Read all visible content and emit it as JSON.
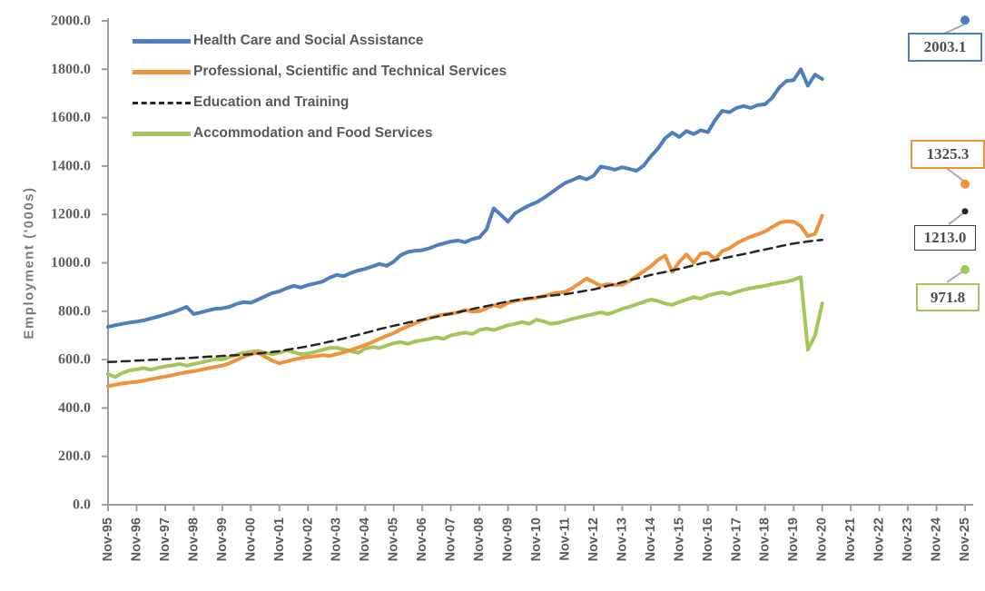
{
  "chart": {
    "y_axis": {
      "title": "Employment ('000s)",
      "min": 0,
      "max": 2000,
      "step": 200,
      "tick_labels": [
        "0.0",
        "200.0",
        "400.0",
        "600.0",
        "800.0",
        "1000.0",
        "1200.0",
        "1400.0",
        "1600.0",
        "1800.0",
        "2000.0"
      ]
    },
    "x_axis": {
      "tick_labels": [
        "Nov-95",
        "Nov-96",
        "Nov-97",
        "Nov-98",
        "Nov-99",
        "Nov-00",
        "Nov-01",
        "Nov-02",
        "Nov-03",
        "Nov-04",
        "Nov-05",
        "Nov-06",
        "Nov-07",
        "Nov-08",
        "Nov-09",
        "Nov-10",
        "Nov-11",
        "Nov-12",
        "Nov-13",
        "Nov-14",
        "Nov-15",
        "Nov-16",
        "Nov-17",
        "Nov-18",
        "Nov-19",
        "Nov-20",
        "Nov-21",
        "Nov-22",
        "Nov-23",
        "Nov-24",
        "Nov-25"
      ]
    }
  },
  "legend": {
    "items": [
      {
        "label": "Health Care and Social Assistance",
        "color": "#4D7EBD",
        "style": "solid"
      },
      {
        "label": "Professional, Scientific and Technical Services",
        "color": "#F0913C",
        "style": "solid"
      },
      {
        "label": "Education and Training",
        "color": "#262626",
        "style": "dashed"
      },
      {
        "label": "Accommodation and Food Services",
        "color": "#A3C55A",
        "style": "solid"
      }
    ]
  },
  "end_labels": [
    {
      "series": "Health Care and Social Assistance",
      "value": "2003.1"
    },
    {
      "series": "Professional, Scientific and Technical Services",
      "value": "1325.3"
    },
    {
      "series": "Education and Training",
      "value": "1213.0"
    },
    {
      "series": "Accommodation and Food Services",
      "value": "971.8"
    }
  ],
  "chart_data": {
    "type": "line",
    "title": "",
    "xlabel": "",
    "ylabel": "Employment ('000s)",
    "ylim": [
      0,
      2000
    ],
    "grid": false,
    "legend_position": "top-left-inside",
    "x_tick_labels": [
      "Nov-95",
      "Nov-96",
      "Nov-97",
      "Nov-98",
      "Nov-99",
      "Nov-00",
      "Nov-01",
      "Nov-02",
      "Nov-03",
      "Nov-04",
      "Nov-05",
      "Nov-06",
      "Nov-07",
      "Nov-08",
      "Nov-09",
      "Nov-10",
      "Nov-11",
      "Nov-12",
      "Nov-13",
      "Nov-14",
      "Nov-15",
      "Nov-16",
      "Nov-17",
      "Nov-18",
      "Nov-19",
      "Nov-20",
      "Nov-21",
      "Nov-22",
      "Nov-23",
      "Nov-24",
      "Nov-25"
    ],
    "series_frequency": "quarterly from Nov-95 to Nov-20, plus single projected point at Nov-25",
    "series": [
      {
        "name": "Health Care and Social Assistance",
        "color": "#4D7EBD",
        "dash": false,
        "values": [
          735,
          742,
          748,
          753,
          757,
          762,
          770,
          778,
          786,
          795,
          806,
          818,
          788,
          795,
          803,
          810,
          812,
          818,
          830,
          838,
          835,
          848,
          862,
          875,
          882,
          895,
          905,
          898,
          908,
          915,
          922,
          938,
          950,
          945,
          958,
          968,
          975,
          985,
          995,
          988,
          1005,
          1032,
          1045,
          1050,
          1052,
          1060,
          1072,
          1080,
          1088,
          1092,
          1085,
          1098,
          1105,
          1138,
          1225,
          1198,
          1170,
          1205,
          1222,
          1238,
          1250,
          1268,
          1288,
          1310,
          1330,
          1342,
          1355,
          1345,
          1360,
          1398,
          1392,
          1385,
          1395,
          1388,
          1380,
          1402,
          1440,
          1472,
          1515,
          1538,
          1520,
          1545,
          1532,
          1548,
          1540,
          1590,
          1628,
          1622,
          1640,
          1648,
          1640,
          1652,
          1655,
          1682,
          1725,
          1752,
          1755,
          1800,
          1732,
          1778,
          1760
        ],
        "end_point": {
          "x_label": "Nov-25",
          "value": 2003.1
        }
      },
      {
        "name": "Professional, Scientific and Technical Services",
        "color": "#F0913C",
        "dash": false,
        "values": [
          490,
          496,
          501,
          505,
          508,
          513,
          519,
          525,
          530,
          536,
          542,
          548,
          552,
          558,
          564,
          570,
          575,
          585,
          598,
          612,
          622,
          628,
          612,
          595,
          585,
          592,
          600,
          606,
          610,
          614,
          618,
          615,
          622,
          630,
          640,
          650,
          660,
          672,
          686,
          698,
          710,
          725,
          738,
          750,
          762,
          772,
          780,
          786,
          790,
          795,
          805,
          798,
          800,
          812,
          825,
          818,
          835,
          842,
          848,
          852,
          855,
          862,
          870,
          876,
          880,
          895,
          915,
          935,
          920,
          905,
          912,
          908,
          910,
          925,
          945,
          965,
          985,
          1012,
          1030,
          962,
          1005,
          1035,
          1000,
          1038,
          1040,
          1015,
          1048,
          1060,
          1080,
          1095,
          1108,
          1118,
          1130,
          1148,
          1165,
          1172,
          1170,
          1152,
          1110,
          1120,
          1195
        ],
        "end_point": {
          "x_label": "Nov-25",
          "value": 1325.3
        }
      },
      {
        "name": "Education and Training",
        "color": "#262626",
        "dash": true,
        "values": [
          590,
          591,
          593,
          594,
          596,
          597,
          599,
          600,
          602,
          603,
          605,
          606,
          608,
          610,
          612,
          613,
          615,
          617,
          618,
          620,
          622,
          625,
          628,
          631,
          635,
          640,
          645,
          650,
          655,
          661,
          667,
          674,
          680,
          687,
          695,
          702,
          710,
          718,
          726,
          733,
          740,
          746,
          753,
          759,
          765,
          771,
          777,
          784,
          790,
          796,
          802,
          809,
          815,
          821,
          827,
          834,
          840,
          845,
          850,
          854,
          858,
          861,
          864,
          867,
          870,
          875,
          880,
          885,
          890,
          897,
          905,
          912,
          920,
          928,
          935,
          942,
          950,
          956,
          962,
          969,
          975,
          982,
          990,
          997,
          1005,
          1011,
          1018,
          1024,
          1030,
          1036,
          1042,
          1049,
          1055,
          1061,
          1068,
          1074,
          1080,
          1084,
          1088,
          1092,
          1095
        ],
        "end_point": {
          "x_label": "Nov-25",
          "value": 1213.0
        }
      },
      {
        "name": "Accommodation and Food Services",
        "color": "#A3C55A",
        "dash": false,
        "values": [
          540,
          528,
          545,
          555,
          560,
          565,
          558,
          566,
          572,
          576,
          582,
          575,
          582,
          588,
          595,
          602,
          600,
          610,
          620,
          628,
          632,
          636,
          628,
          622,
          628,
          638,
          630,
          622,
          625,
          632,
          640,
          648,
          649,
          642,
          635,
          628,
          645,
          652,
          648,
          658,
          668,
          672,
          665,
          675,
          680,
          685,
          692,
          686,
          700,
          706,
          712,
          706,
          722,
          728,
          722,
          732,
          742,
          748,
          755,
          748,
          765,
          758,
          748,
          752,
          760,
          768,
          775,
          782,
          788,
          795,
          788,
          798,
          810,
          818,
          828,
          838,
          848,
          842,
          832,
          826,
          838,
          848,
          858,
          852,
          865,
          872,
          878,
          870,
          880,
          888,
          895,
          900,
          905,
          912,
          918,
          922,
          930,
          941,
          641,
          700,
          832
        ],
        "end_point": {
          "x_label": "Nov-25",
          "value": 971.8
        }
      }
    ]
  }
}
